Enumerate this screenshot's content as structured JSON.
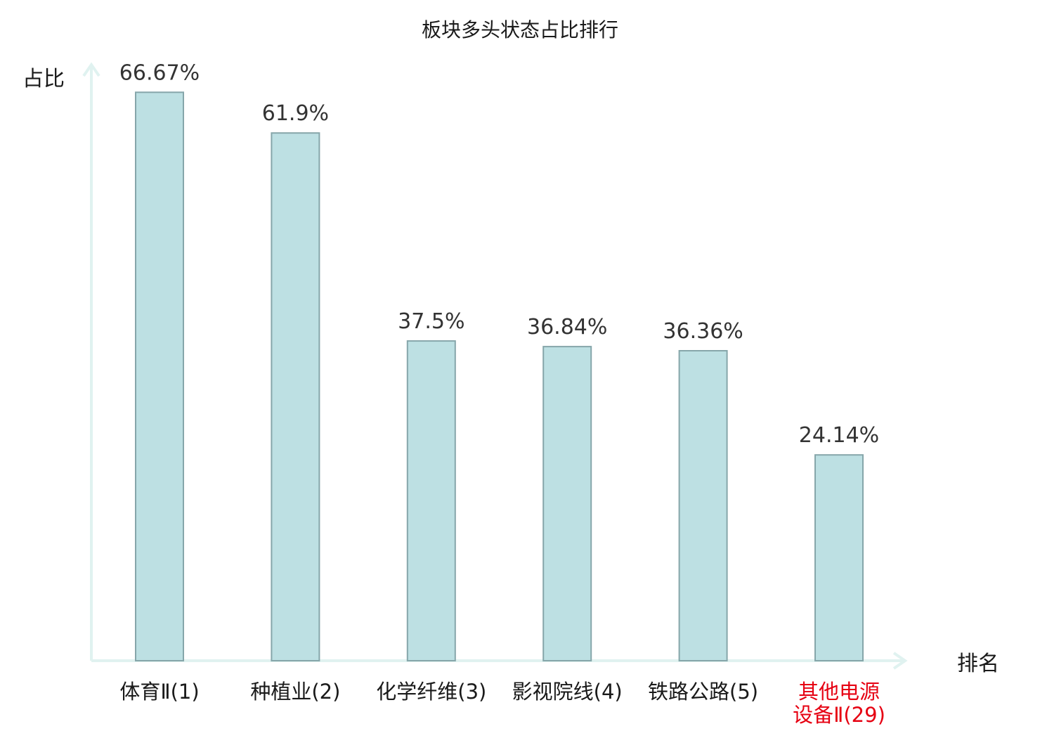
{
  "chart_data": {
    "type": "bar",
    "title": "板块多头状态占比排行",
    "ylabel": "占比",
    "xlabel": "排名",
    "categories": [
      [
        "体育Ⅱ(1)"
      ],
      [
        "种植业(2)"
      ],
      [
        "化学纤维(3)"
      ],
      [
        "影视院线(4)"
      ],
      [
        "铁路公路(5)"
      ],
      [
        "其他电源",
        "设备Ⅱ(29)"
      ]
    ],
    "values": [
      66.67,
      61.9,
      37.5,
      36.84,
      36.36,
      24.14
    ],
    "value_labels": [
      "66.67%",
      "61.9%",
      "37.5%",
      "36.84%",
      "36.36%",
      "24.14%"
    ],
    "highlight_index": 5,
    "highlight_color": "#e60012",
    "bar_color": "#bde0e3",
    "bar_stroke": "#86a6aa",
    "axis_color": "#e0f2f0",
    "grid": false,
    "legend": "none"
  }
}
